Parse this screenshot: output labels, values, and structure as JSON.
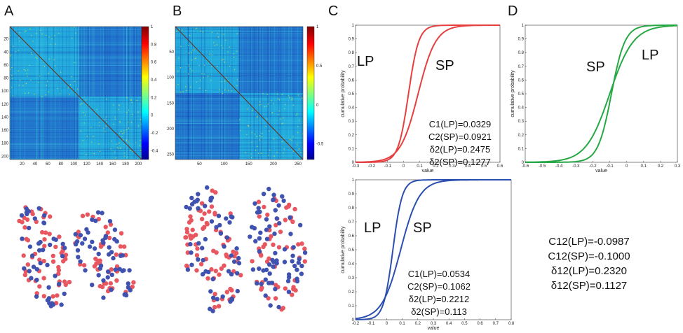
{
  "panel_letters": [
    "A",
    "B",
    "C",
    "D"
  ],
  "colors": {
    "red_curve": "#e5403f",
    "blue_curve": "#2a4fae",
    "green_curve": "#27a844",
    "dot_red": "#e8565f",
    "dot_blue": "#3f52b0"
  },
  "chart_data": [
    {
      "id": "A_matrix",
      "type": "heatmap",
      "colormap": "jet",
      "x_ticks": [
        "20",
        "40",
        "60",
        "80",
        "100",
        "120",
        "140",
        "160",
        "180",
        "200"
      ],
      "y_ticks": [
        "20",
        "40",
        "60",
        "80",
        "100",
        "120",
        "140",
        "160",
        "180",
        "200"
      ],
      "x_range": [
        1,
        205
      ],
      "y_range": [
        1,
        205
      ],
      "colorbar_ticks": [
        "1",
        "0.8",
        "0.6",
        "0.4",
        "0.2",
        "0",
        "-0.2",
        "-0.4"
      ],
      "colorbar_range": [
        -0.5,
        1
      ],
      "block_split": 108
    },
    {
      "id": "B_matrix",
      "type": "heatmap",
      "colormap": "jet",
      "x_ticks": [
        "50",
        "100",
        "150",
        "200",
        "250"
      ],
      "y_ticks": [
        "50",
        "100",
        "150",
        "200",
        "250"
      ],
      "x_range": [
        1,
        260
      ],
      "y_range": [
        1,
        260
      ],
      "colorbar_ticks": [
        "1",
        "0.5",
        "0",
        "-0.5"
      ],
      "colorbar_range": [
        -0.7,
        1
      ],
      "block_split": 130
    },
    {
      "id": "C_top",
      "type": "line",
      "color_key": "red_curve",
      "xlabel": "value",
      "ylabel": "cumulative probability",
      "xlim": [
        -0.3,
        0.6
      ],
      "ylim": [
        0,
        1
      ],
      "x_ticks": [
        "-0.3",
        "-0.2",
        "-0.1",
        "0",
        "0.1",
        "0.2",
        "0.3",
        "0.4",
        "0.5",
        "0.6"
      ],
      "y_ticks": [
        "0",
        "0.1",
        "0.2",
        "0.3",
        "0.4",
        "0.5",
        "0.6",
        "0.7",
        "0.8",
        "0.9",
        "1"
      ],
      "series": [
        {
          "name": "LP",
          "center": 0.03,
          "scale": 0.032
        },
        {
          "name": "SP",
          "center": 0.09,
          "scale": 0.055
        }
      ],
      "labels": [
        "LP",
        "SP"
      ],
      "stats": [
        "C1(LP)=0.0329",
        "C2(SP)=0.0921",
        "δ2(LP)=0.2475",
        "δ2(SP)=0.1277"
      ]
    },
    {
      "id": "C_bottom",
      "type": "line",
      "color_key": "blue_curve",
      "xlabel": "value",
      "ylabel": "cumulative probability",
      "xlim": [
        -0.2,
        0.8
      ],
      "ylim": [
        0,
        1
      ],
      "x_ticks": [
        "-0.2",
        "-0.1",
        "0",
        "0.1",
        "0.2",
        "0.3",
        "0.4",
        "0.5",
        "0.6",
        "0.7",
        "0.8"
      ],
      "y_ticks": [
        "0",
        "0.1",
        "0.2",
        "0.3",
        "0.4",
        "0.5",
        "0.6",
        "0.7",
        "0.8",
        "0.9",
        "1"
      ],
      "series": [
        {
          "name": "LP",
          "center": 0.04,
          "scale": 0.03
        },
        {
          "name": "SP",
          "center": 0.09,
          "scale": 0.06
        }
      ],
      "labels": [
        "LP",
        "SP"
      ],
      "stats": [
        "C1(LP)=0.0534",
        "C2(SP)=0.1062",
        "δ2(LP)=0.2212",
        "δ2(SP)=0.113"
      ]
    },
    {
      "id": "D_top",
      "type": "line",
      "color_key": "green_curve",
      "xlabel": "value",
      "ylabel": "cumulative probability",
      "xlim": [
        -0.6,
        0.3
      ],
      "ylim": [
        0,
        1
      ],
      "x_ticks": [
        "-0.6",
        "-0.5",
        "-0.4",
        "-0.3",
        "-0.2",
        "-0.1",
        "0",
        "0.1",
        "0.2",
        "0.3"
      ],
      "y_ticks": [
        "0",
        "0.1",
        "0.2",
        "0.3",
        "0.4",
        "0.5",
        "0.6",
        "0.7",
        "0.8",
        "0.9",
        "1"
      ],
      "series": [
        {
          "name": "LP",
          "center": -0.09,
          "scale": 0.04
        },
        {
          "name": "SP",
          "center": -0.1,
          "scale": 0.07
        }
      ],
      "labels": [
        "SP",
        "LP"
      ],
      "stats": [
        "C12(LP)=-0.0987",
        "C12(SP)=-0.1000",
        "δ12(LP)=0.2320",
        "δ12(SP)=0.1127"
      ]
    },
    {
      "id": "A_network",
      "type": "scatter",
      "red_count": 105,
      "blue_count": 100
    },
    {
      "id": "B_network",
      "type": "scatter",
      "red_count": 130,
      "blue_count": 125
    }
  ]
}
